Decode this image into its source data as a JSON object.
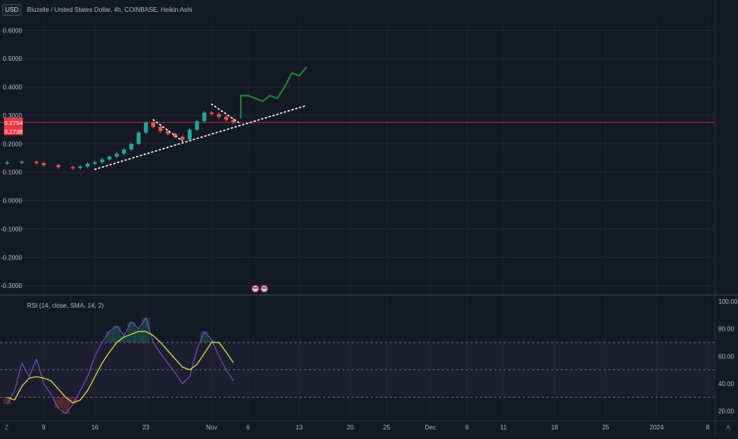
{
  "header": {
    "currency_button": "USD",
    "title": "Bluzelle / United States Dollar, 4h, COINBASE, Heikin Ashi"
  },
  "rsi_panel": {
    "title": "RSI (14, close, SMA, 14, 2)"
  },
  "price_badges": {
    "last_price": "0.2754",
    "prev_price": "0.2738",
    "color": "#f23645"
  },
  "footer": {
    "left_icon": "Z",
    "right_label": "A"
  },
  "colors": {
    "up": "#26a69a",
    "down": "#ef5350",
    "projection": "#1e7a3a",
    "rsi_line": "#7e57c2",
    "rsi_ma": "#e6e04a",
    "band_fill": "#7e57c2"
  },
  "chart_data": [
    {
      "type": "line",
      "panel": "price",
      "ylim": [
        -0.33,
        0.64
      ],
      "yticks": [
        "0.6000",
        "0.5000",
        "0.4000",
        "0.3000",
        "0.2000",
        "0.1000",
        "0.0000",
        "-0.1000",
        "-0.2000",
        "-0.3000"
      ],
      "ytick_values": [
        0.6,
        0.5,
        0.4,
        0.3,
        0.2,
        0.1,
        0.0,
        -0.1,
        -0.2,
        -0.3
      ],
      "xticks": [
        "9",
        "16",
        "23",
        "Nov",
        "6",
        "13",
        "20",
        "25",
        "Dec",
        "6",
        "11",
        "18",
        "25",
        "2024",
        "8"
      ],
      "xtick_dates": [
        "2023-10-09",
        "2023-10-16",
        "2023-10-23",
        "2023-11-01",
        "2023-11-06",
        "2023-11-13",
        "2023-11-20",
        "2023-11-25",
        "2023-12-01",
        "2023-12-06",
        "2023-12-11",
        "2023-12-18",
        "2023-12-25",
        "2024-01-01",
        "2024-01-08"
      ],
      "xlim": [
        "2023-10-03",
        "2024-01-09"
      ],
      "current_price_line": 0.2754,
      "series": [
        {
          "role": "heikin-ashi-close",
          "x": [
            "2023-10-04",
            "2023-10-06",
            "2023-10-08",
            "2023-10-09",
            "2023-10-11",
            "2023-10-13",
            "2023-10-14",
            "2023-10-15",
            "2023-10-16",
            "2023-10-17",
            "2023-10-18",
            "2023-10-19",
            "2023-10-20",
            "2023-10-21",
            "2023-10-22",
            "2023-10-23",
            "2023-10-24",
            "2023-10-25",
            "2023-10-26",
            "2023-10-27",
            "2023-10-28",
            "2023-10-29",
            "2023-10-30",
            "2023-10-31",
            "2023-11-01",
            "2023-11-02",
            "2023-11-03",
            "2023-11-04"
          ],
          "y": [
            0.135,
            0.137,
            0.132,
            0.125,
            0.118,
            0.115,
            0.12,
            0.13,
            0.135,
            0.145,
            0.155,
            0.165,
            0.18,
            0.2,
            0.24,
            0.275,
            0.26,
            0.245,
            0.235,
            0.225,
            0.215,
            0.25,
            0.28,
            0.31,
            0.305,
            0.295,
            0.285,
            0.275
          ]
        },
        {
          "role": "projection",
          "x": [
            "2023-11-05",
            "2023-11-05",
            "2023-11-06",
            "2023-11-08",
            "2023-11-09",
            "2023-11-10",
            "2023-11-11",
            "2023-11-12",
            "2023-11-13",
            "2023-11-14"
          ],
          "y": [
            0.29,
            0.37,
            0.37,
            0.35,
            0.37,
            0.36,
            0.4,
            0.45,
            0.44,
            0.47
          ]
        },
        {
          "role": "rising-trendline",
          "x": [
            "2023-10-16",
            "2023-11-14"
          ],
          "y": [
            0.11,
            0.335
          ]
        },
        {
          "role": "pennant-1-upper",
          "x": [
            "2023-10-24",
            "2023-10-28"
          ],
          "y": [
            0.285,
            0.21
          ]
        },
        {
          "role": "pennant-2-upper",
          "x": [
            "2023-11-01",
            "2023-11-05"
          ],
          "y": [
            0.34,
            0.27
          ]
        }
      ]
    },
    {
      "type": "line",
      "panel": "rsi",
      "ylim": [
        14,
        104
      ],
      "yticks": [
        "100.00",
        "80.00",
        "60.00",
        "40.00",
        "20.00"
      ],
      "ytick_values": [
        100,
        80,
        60,
        40,
        20
      ],
      "bands": [
        70,
        50,
        30
      ],
      "series": [
        {
          "role": "rsi",
          "x": [
            "2023-10-04",
            "2023-10-05",
            "2023-10-06",
            "2023-10-07",
            "2023-10-08",
            "2023-10-09",
            "2023-10-10",
            "2023-10-11",
            "2023-10-12",
            "2023-10-13",
            "2023-10-14",
            "2023-10-15",
            "2023-10-16",
            "2023-10-17",
            "2023-10-18",
            "2023-10-19",
            "2023-10-20",
            "2023-10-21",
            "2023-10-22",
            "2023-10-23",
            "2023-10-24",
            "2023-10-25",
            "2023-10-26",
            "2023-10-27",
            "2023-10-28",
            "2023-10-29",
            "2023-10-30",
            "2023-10-31",
            "2023-11-01",
            "2023-11-02",
            "2023-11-03",
            "2023-11-04"
          ],
          "y": [
            25,
            35,
            55,
            45,
            58,
            40,
            32,
            22,
            18,
            25,
            35,
            45,
            60,
            70,
            78,
            82,
            75,
            85,
            80,
            88,
            70,
            62,
            55,
            48,
            40,
            45,
            65,
            78,
            72,
            60,
            50,
            42
          ]
        },
        {
          "role": "rsi-ma",
          "x": [
            "2023-10-04",
            "2023-10-05",
            "2023-10-06",
            "2023-10-07",
            "2023-10-08",
            "2023-10-09",
            "2023-10-10",
            "2023-10-11",
            "2023-10-12",
            "2023-10-13",
            "2023-10-14",
            "2023-10-15",
            "2023-10-16",
            "2023-10-17",
            "2023-10-18",
            "2023-10-19",
            "2023-10-20",
            "2023-10-21",
            "2023-10-22",
            "2023-10-23",
            "2023-10-24",
            "2023-10-25",
            "2023-10-26",
            "2023-10-27",
            "2023-10-28",
            "2023-10-29",
            "2023-10-30",
            "2023-10-31",
            "2023-11-01",
            "2023-11-02",
            "2023-11-03",
            "2023-11-04"
          ],
          "y": [
            30,
            28,
            38,
            44,
            45,
            44,
            42,
            36,
            30,
            26,
            28,
            35,
            45,
            55,
            63,
            70,
            74,
            76,
            78,
            78,
            75,
            70,
            64,
            58,
            52,
            50,
            54,
            62,
            70,
            70,
            63,
            55
          ]
        }
      ]
    }
  ]
}
